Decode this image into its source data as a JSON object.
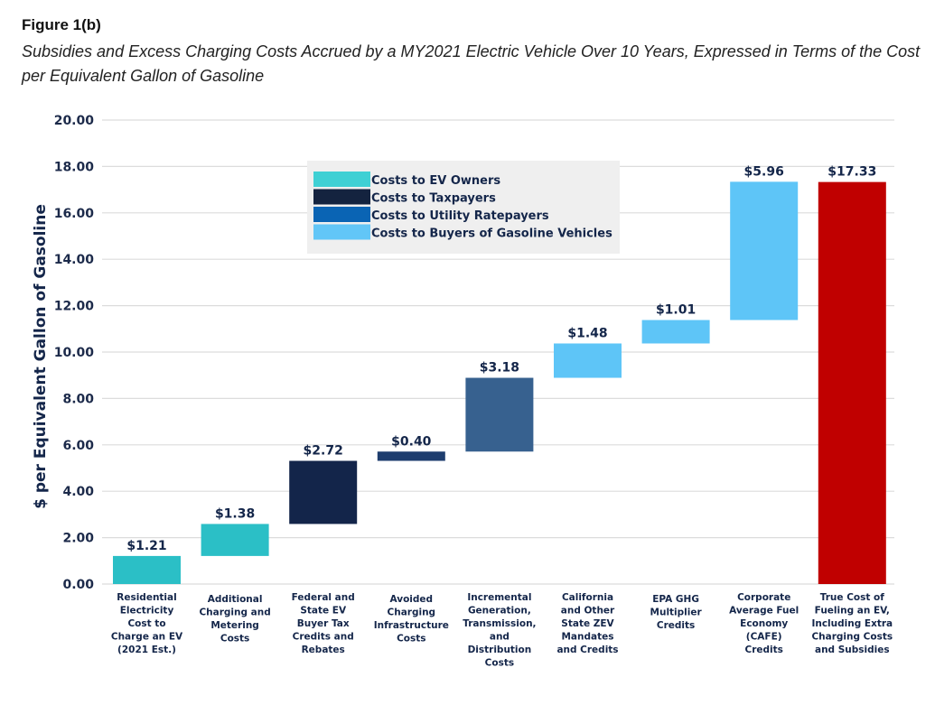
{
  "figure_label": "Figure 1(b)",
  "chart_data": {
    "type": "waterfall",
    "title": "Subsidies and Excess Charging Costs Accrued by a MY2021 Electric Vehicle Over 10 Years, Expressed in Terms of the Cost per Equivalent Gallon of Gasoline",
    "xlabel": "",
    "ylabel": "$ per Equivalent Gallon of Gasoline",
    "ylim": [
      0,
      20
    ],
    "yticks": [
      "0.00",
      "2.00",
      "4.00",
      "6.00",
      "8.00",
      "10.00",
      "12.00",
      "14.00",
      "16.00",
      "18.00",
      "20.00"
    ],
    "grid": true,
    "legend_placement": "top-center",
    "legend": [
      {
        "label": "Costs to EV Owners",
        "color": "#3fd0d4"
      },
      {
        "label": "Costs to Taxpayers",
        "color": "#14233f"
      },
      {
        "label": "Costs to Utility Ratepayers",
        "color": "#0a64b4"
      },
      {
        "label": "Costs to Buyers of Gasoline Vehicles",
        "color": "#62c6f7"
      }
    ],
    "categories": [
      [
        "Residential",
        "Electricity",
        "Cost to",
        "Charge an EV",
        "(2021 Est.)"
      ],
      [
        "Additional",
        "Charging and",
        "Metering",
        "Costs"
      ],
      [
        "Federal and",
        "State EV",
        "Buyer Tax",
        "Credits and",
        "Rebates"
      ],
      [
        "Avoided",
        "Charging",
        "Infrastructure",
        "Costs"
      ],
      [
        "Incremental",
        "Generation,",
        "Transmission,",
        "and",
        "Distribution",
        "Costs"
      ],
      [
        "California",
        "and Other",
        "State ZEV",
        "Mandates",
        "and Credits"
      ],
      [
        "EPA GHG",
        "Multiplier",
        "Credits"
      ],
      [
        "Corporate",
        "Average Fuel",
        "Economy",
        "(CAFE)",
        "Credits"
      ],
      [
        "True Cost of",
        "Fueling an EV,",
        "Including Extra",
        "Charging Costs",
        "and Subsidies"
      ]
    ],
    "values": [
      1.21,
      1.38,
      2.72,
      0.4,
      3.18,
      1.48,
      1.01,
      5.96,
      17.33
    ],
    "data_labels": [
      "$1.21",
      "$1.38",
      "$2.72",
      "$0.40",
      "$3.18",
      "$1.48",
      "$1.01",
      "$5.96",
      "$17.33"
    ],
    "is_total": [
      false,
      false,
      false,
      false,
      false,
      false,
      false,
      false,
      true
    ],
    "bar_colors": [
      "#2bbfc6",
      "#2bbfc6",
      "#13254a",
      "#1e3d6e",
      "#37618f",
      "#5ec5f7",
      "#5ec5f7",
      "#5ec5f7",
      "#c00000"
    ]
  }
}
